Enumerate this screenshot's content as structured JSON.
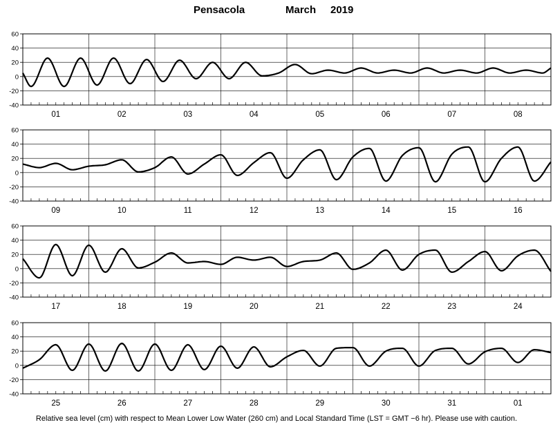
{
  "title": {
    "location": "Pensacola",
    "month": "March",
    "year": "2019"
  },
  "footer": "Relative sea level (cm) with respect to Mean Lower Low Water (260 cm) and Local Standard Time (LST = GMT −6 hr). Please use with caution.",
  "chart_data": {
    "type": "line",
    "ylim": [
      -40,
      60
    ],
    "yticks": [
      -40,
      -20,
      0,
      20,
      40,
      60
    ],
    "grid": true,
    "panels": [
      {
        "days": [
          "01",
          "02",
          "03",
          "04",
          "05",
          "06",
          "07",
          "08"
        ],
        "x_hours": [
          0,
          3,
          9,
          15,
          21,
          27,
          33,
          39,
          45,
          51,
          57,
          63,
          69,
          75,
          81,
          87,
          93,
          99,
          105,
          111,
          117,
          123,
          129,
          135,
          141,
          147,
          153,
          159,
          165,
          171,
          177,
          183,
          189,
          192
        ],
        "y": [
          5,
          -14,
          26,
          -14,
          26,
          -12,
          26,
          -10,
          24,
          -7,
          23,
          -3,
          20,
          -3,
          20,
          1,
          5,
          17,
          4,
          9,
          5,
          12,
          5,
          9,
          5,
          12,
          5,
          9,
          5,
          12,
          5,
          9,
          5,
          12
        ]
      },
      {
        "days": [
          "09",
          "10",
          "11",
          "12",
          "13",
          "14",
          "15",
          "16"
        ],
        "x_hours": [
          0,
          6,
          12,
          18,
          24,
          30,
          36,
          42,
          48,
          54,
          60,
          66,
          72,
          78,
          84,
          90,
          96,
          102,
          108,
          114,
          120,
          126,
          132,
          138,
          144,
          150,
          156,
          162,
          168,
          174,
          180,
          186,
          192
        ],
        "y": [
          12,
          7,
          13,
          4,
          9,
          11,
          18,
          1,
          7,
          22,
          -2,
          12,
          25,
          -4,
          14,
          28,
          -8,
          18,
          32,
          -10,
          22,
          34,
          -12,
          24,
          35,
          -13,
          26,
          36,
          -13,
          20,
          36,
          -12,
          15
        ]
      },
      {
        "days": [
          "17",
          "18",
          "19",
          "20",
          "21",
          "22",
          "23",
          "24"
        ],
        "x_hours": [
          0,
          6,
          12,
          18,
          24,
          30,
          36,
          42,
          48,
          54,
          60,
          66,
          72,
          78,
          84,
          90,
          96,
          102,
          108,
          114,
          120,
          126,
          132,
          138,
          144,
          150,
          156,
          162,
          168,
          174,
          180,
          186,
          192
        ],
        "y": [
          14,
          -13,
          34,
          -10,
          33,
          -5,
          28,
          1,
          9,
          22,
          8,
          10,
          6,
          16,
          12,
          16,
          3,
          10,
          12,
          22,
          -1,
          8,
          26,
          -2,
          20,
          26,
          -5,
          10,
          24,
          -3,
          18,
          26,
          -4
        ]
      },
      {
        "days": [
          "25",
          "26",
          "27",
          "28",
          "29",
          "30",
          "31",
          "01"
        ],
        "x_hours": [
          0,
          6,
          12,
          18,
          24,
          30,
          36,
          42,
          48,
          54,
          60,
          66,
          72,
          78,
          84,
          90,
          96,
          102,
          108,
          114,
          120,
          126,
          132,
          138,
          144,
          150,
          156,
          162,
          168,
          174,
          180,
          186,
          192
        ],
        "y": [
          -4,
          8,
          29,
          -7,
          30,
          -8,
          31,
          -8,
          30,
          -7,
          29,
          -6,
          27,
          -4,
          26,
          -2,
          12,
          21,
          -1,
          24,
          25,
          -1,
          20,
          24,
          -1,
          21,
          24,
          2,
          19,
          24,
          4,
          22,
          18
        ]
      }
    ]
  }
}
